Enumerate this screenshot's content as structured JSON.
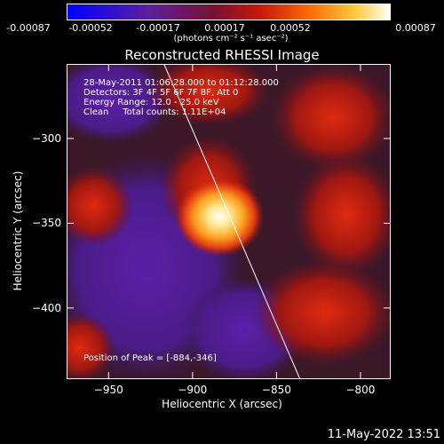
{
  "colorbar": {
    "ticks": [
      "-0.00087",
      "-0.00052",
      "-0.00017",
      "0.00017",
      "0.00052",
      "0.00087"
    ],
    "units": "(photons cm⁻² s⁻¹ asec⁻²)",
    "colors": [
      "#0000ff",
      "#5a1ea0",
      "#7a1030",
      "#c81808",
      "#ff6a00",
      "#ffd040",
      "#ffffff"
    ]
  },
  "annotations": {
    "line1": "28-May-2011 01:06:28.000 to 01:12:28.000",
    "line2": "Detectors: 3F 4F 5F 6F 7F 8F, Att 0",
    "line3": "Energy Range: 12.0 - 25.0 keV",
    "line4": "Clean     Total counts: 1.11E+04",
    "peak": "Position of Peak = [-884,-346]"
  },
  "datestamp": "11-May-2022 13:51",
  "chart_data": {
    "type": "heatmap",
    "title": "Reconstructed RHESSI Image",
    "xlabel": "Heliocentric X (arcsec)",
    "ylabel": "Heliocentric Y (arcsec)",
    "xlim": [
      -975,
      -782
    ],
    "ylim": [
      -442,
      -256
    ],
    "xticks": [
      -950,
      -900,
      -850,
      -800
    ],
    "yticks": [
      -300,
      -350,
      -400
    ],
    "xtick_labels": [
      "−950",
      "−900",
      "−850",
      "−800"
    ],
    "ytick_labels": [
      "−300",
      "−350",
      "−400"
    ],
    "peak": {
      "x": -884,
      "y": -346
    },
    "value_range": [
      -0.00087,
      0.00087
    ],
    "limb_line": [
      [
        -917,
        -256
      ],
      [
        -836,
        -442
      ]
    ]
  }
}
